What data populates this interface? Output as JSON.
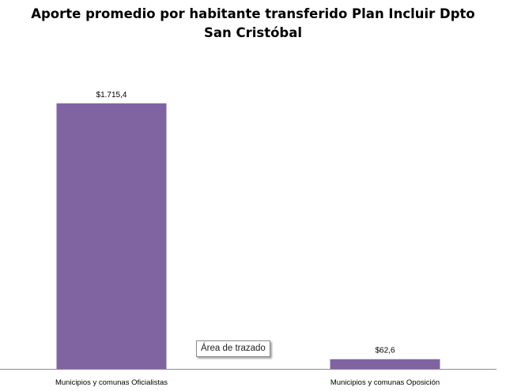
{
  "chart_data": {
    "type": "bar",
    "title": "Aporte promedio por habitante  transferido Plan Incluir Dpto San Cristóbal",
    "categories": [
      "Municipios y comunas Oficialistas",
      "Municipios y comunas Oposición"
    ],
    "values": [
      1715.4,
      62.6
    ],
    "data_labels": [
      "$1.715,4",
      "$62,6"
    ],
    "xlabel": "",
    "ylabel": "",
    "ylim": [
      0,
      2000
    ],
    "grid": false,
    "legend": "none",
    "bar_color": "#8064A2"
  },
  "tooltip": {
    "text": "Área de trazado"
  }
}
